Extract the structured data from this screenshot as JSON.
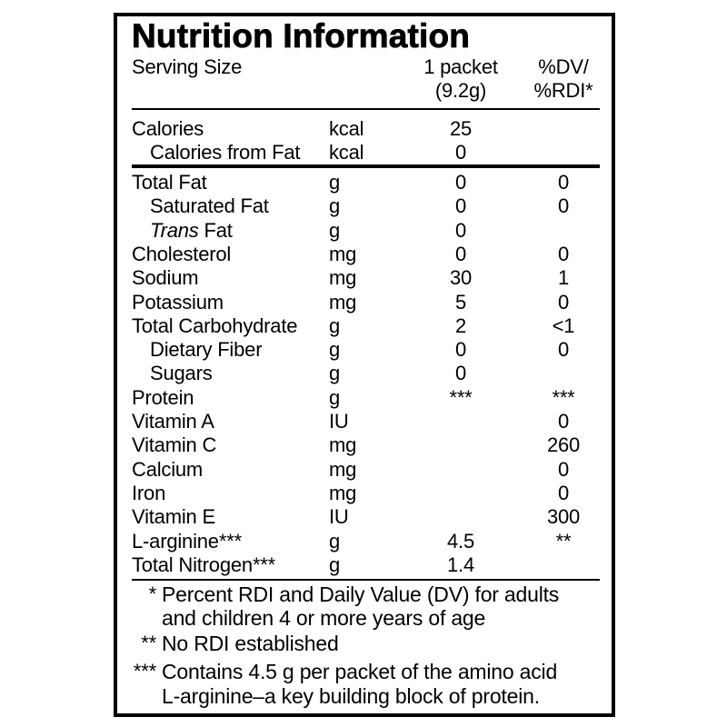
{
  "title": "Nutrition Information",
  "header": {
    "serving_size_label": "Serving Size",
    "amount_line1": "1 packet",
    "amount_line2": "(9.2g)",
    "dv_line1": "%DV/",
    "dv_line2": "%RDI*"
  },
  "calories": [
    {
      "name": "Calories",
      "unit": "kcal",
      "amount": "25",
      "dv": "",
      "indent": false
    },
    {
      "name": "Calories from Fat",
      "unit": "kcal",
      "amount": "0",
      "dv": "",
      "indent": true
    }
  ],
  "nutrients": [
    {
      "name": "Total Fat",
      "unit": "g",
      "amount": "0",
      "dv": "0",
      "indent": false
    },
    {
      "name": "Saturated Fat",
      "unit": "g",
      "amount": "0",
      "dv": "0",
      "indent": true
    },
    {
      "name_italic": "Trans",
      "name": " Fat",
      "unit": "g",
      "amount": "0",
      "dv": "",
      "indent": true
    },
    {
      "name": "Cholesterol",
      "unit": "mg",
      "amount": "0",
      "dv": "0",
      "indent": false
    },
    {
      "name": "Sodium",
      "unit": "mg",
      "amount": "30",
      "dv": "1",
      "indent": false
    },
    {
      "name": "Potassium",
      "unit": "mg",
      "amount": "5",
      "dv": "0",
      "indent": false
    },
    {
      "name": "Total Carbohydrate",
      "unit": "g",
      "amount": "2",
      "dv": "<1",
      "indent": false
    },
    {
      "name": "Dietary Fiber",
      "unit": "g",
      "amount": "0",
      "dv": "0",
      "indent": true
    },
    {
      "name": "Sugars",
      "unit": "g",
      "amount": "0",
      "dv": "",
      "indent": true
    },
    {
      "name": "Protein",
      "unit": "g",
      "amount": "***",
      "dv": "***",
      "indent": false
    },
    {
      "name": "Vitamin A",
      "unit": "IU",
      "amount": "",
      "dv": "0",
      "indent": false
    },
    {
      "name": "Vitamin C",
      "unit": "mg",
      "amount": "",
      "dv": "260",
      "indent": false
    },
    {
      "name": "Calcium",
      "unit": "mg",
      "amount": "",
      "dv": "0",
      "indent": false
    },
    {
      "name": "Iron",
      "unit": "mg",
      "amount": "",
      "dv": "0",
      "indent": false
    },
    {
      "name": "Vitamin E",
      "unit": "IU",
      "amount": "",
      "dv": "300",
      "indent": false
    },
    {
      "name": "L-arginine***",
      "unit": "g",
      "amount": "4.5",
      "dv": "**",
      "indent": false
    },
    {
      "name": "Total Nitrogen***",
      "unit": "g",
      "amount": "1.4",
      "dv": "",
      "indent": false
    }
  ],
  "footnotes": [
    {
      "mark": "*",
      "lines": [
        "Percent RDI and Daily Value (DV) for adults",
        "and children 4 or more years of age"
      ]
    },
    {
      "mark": "**",
      "lines": [
        "No RDI established"
      ]
    },
    {
      "mark": "***",
      "lines": [
        "Contains 4.5 g per packet of the amino acid",
        "L-arginine–a key building block of protein."
      ]
    }
  ]
}
